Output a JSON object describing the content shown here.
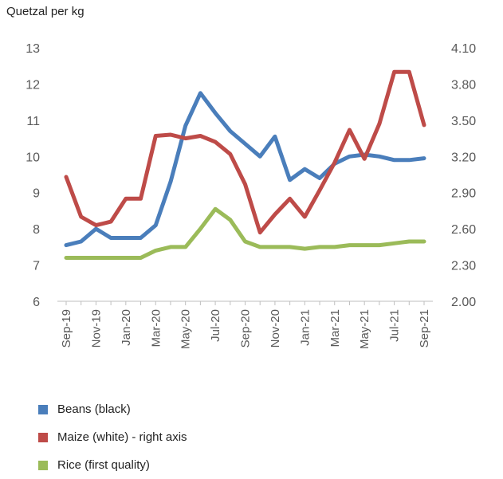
{
  "unit_label": "Quetzal per kg",
  "chart_data": {
    "type": "line",
    "categories": [
      "Sep-19",
      "Oct-19",
      "Nov-19",
      "Dec-19",
      "Jan-20",
      "Feb-20",
      "Mar-20",
      "Apr-20",
      "May-20",
      "Jun-20",
      "Jul-20",
      "Aug-20",
      "Sep-20",
      "Oct-20",
      "Nov-20",
      "Dec-20",
      "Jan-21",
      "Feb-21",
      "Mar-21",
      "Apr-21",
      "May-21",
      "Jun-21",
      "Jul-21",
      "Aug-21",
      "Sep-21"
    ],
    "tick_labels": [
      "Sep-19",
      "Nov-19",
      "Jan-20",
      "Mar-20",
      "May-20",
      "Jul-20",
      "Sep-20",
      "Nov-20",
      "Jan-21",
      "Mar-21",
      "May-21",
      "Jul-21",
      "Sep-21"
    ],
    "y_left": {
      "min": 6,
      "max": 13,
      "ticks": [
        "6",
        "7",
        "8",
        "9",
        "10",
        "11",
        "12",
        "13"
      ]
    },
    "y_right": {
      "min": 2.0,
      "max": 4.1,
      "ticks": [
        "2.00",
        "2.30",
        "2.60",
        "2.90",
        "3.20",
        "3.50",
        "3.80",
        "4.10"
      ]
    },
    "series": [
      {
        "name": "Beans (black)",
        "axis": "left",
        "color": "#4a7ebb",
        "values": [
          7.55,
          7.65,
          8.0,
          7.75,
          7.75,
          7.75,
          8.1,
          9.3,
          10.85,
          11.75,
          11.2,
          10.7,
          10.35,
          10.0,
          10.55,
          9.35,
          9.65,
          9.4,
          9.8,
          10.0,
          10.05,
          10.0,
          9.9,
          9.9,
          9.95
        ]
      },
      {
        "name": "Maize (white) - right axis",
        "axis": "right",
        "color": "#be4b48",
        "values": [
          3.03,
          2.7,
          2.63,
          2.66,
          2.85,
          2.85,
          3.37,
          3.38,
          3.35,
          3.37,
          3.32,
          3.22,
          2.97,
          2.57,
          2.72,
          2.85,
          2.7,
          2.92,
          3.15,
          3.42,
          3.18,
          3.47,
          3.9,
          3.9,
          3.46
        ]
      },
      {
        "name": "Rice (first quality)",
        "axis": "left",
        "color": "#9bbb59",
        "values": [
          7.2,
          7.2,
          7.2,
          7.2,
          7.2,
          7.2,
          7.4,
          7.5,
          7.5,
          8.0,
          8.55,
          8.25,
          7.65,
          7.5,
          7.5,
          7.5,
          7.45,
          7.5,
          7.5,
          7.55,
          7.55,
          7.55,
          7.6,
          7.65,
          7.65
        ]
      }
    ],
    "grid": false,
    "legend_position": "bottom-left"
  }
}
